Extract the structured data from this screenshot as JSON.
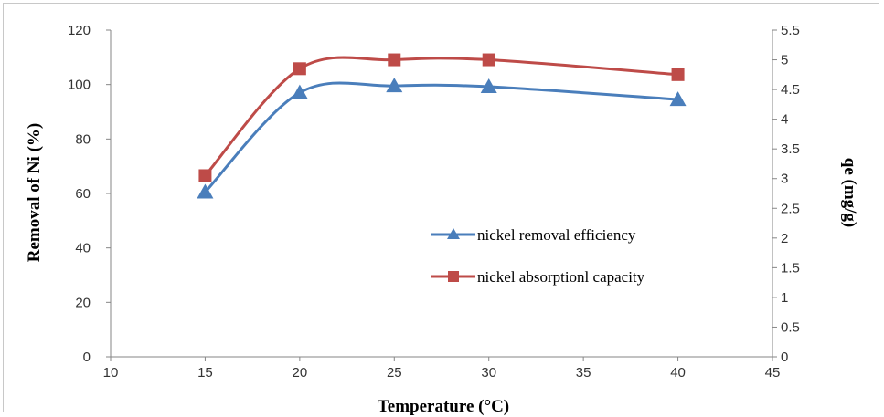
{
  "chart_data": {
    "type": "line",
    "x": [
      15,
      20,
      25,
      30,
      40
    ],
    "series": [
      {
        "name": "nickel removal efficiency",
        "axis": "left",
        "values": [
          60.5,
          97,
          99.5,
          99.2,
          94.5
        ],
        "color": "#4a7ebb",
        "marker": "triangle"
      },
      {
        "name": "nickel absorptionl capacity",
        "axis": "right",
        "values": [
          3.05,
          4.85,
          5.0,
          5.0,
          4.75
        ],
        "color": "#be4b48",
        "marker": "square"
      }
    ],
    "xlabel": "Temperature (°C)",
    "ylabel": "Removal of Ni (%)",
    "y2label": "qe (mg/g)",
    "xlim": [
      10,
      45
    ],
    "ylim": [
      0,
      120
    ],
    "y2lim": [
      0,
      5.5
    ],
    "xticks": [
      "10",
      "15",
      "20",
      "25",
      "30",
      "35",
      "40",
      "45"
    ],
    "yticks": [
      "0",
      "20",
      "40",
      "60",
      "80",
      "100",
      "120"
    ],
    "y2ticks": [
      "0",
      "0.5",
      "1",
      "1.5",
      "2",
      "2.5",
      "3",
      "3.5",
      "4",
      "4.5",
      "5",
      "5.5"
    ],
    "grid": false,
    "legend": "center-right"
  }
}
